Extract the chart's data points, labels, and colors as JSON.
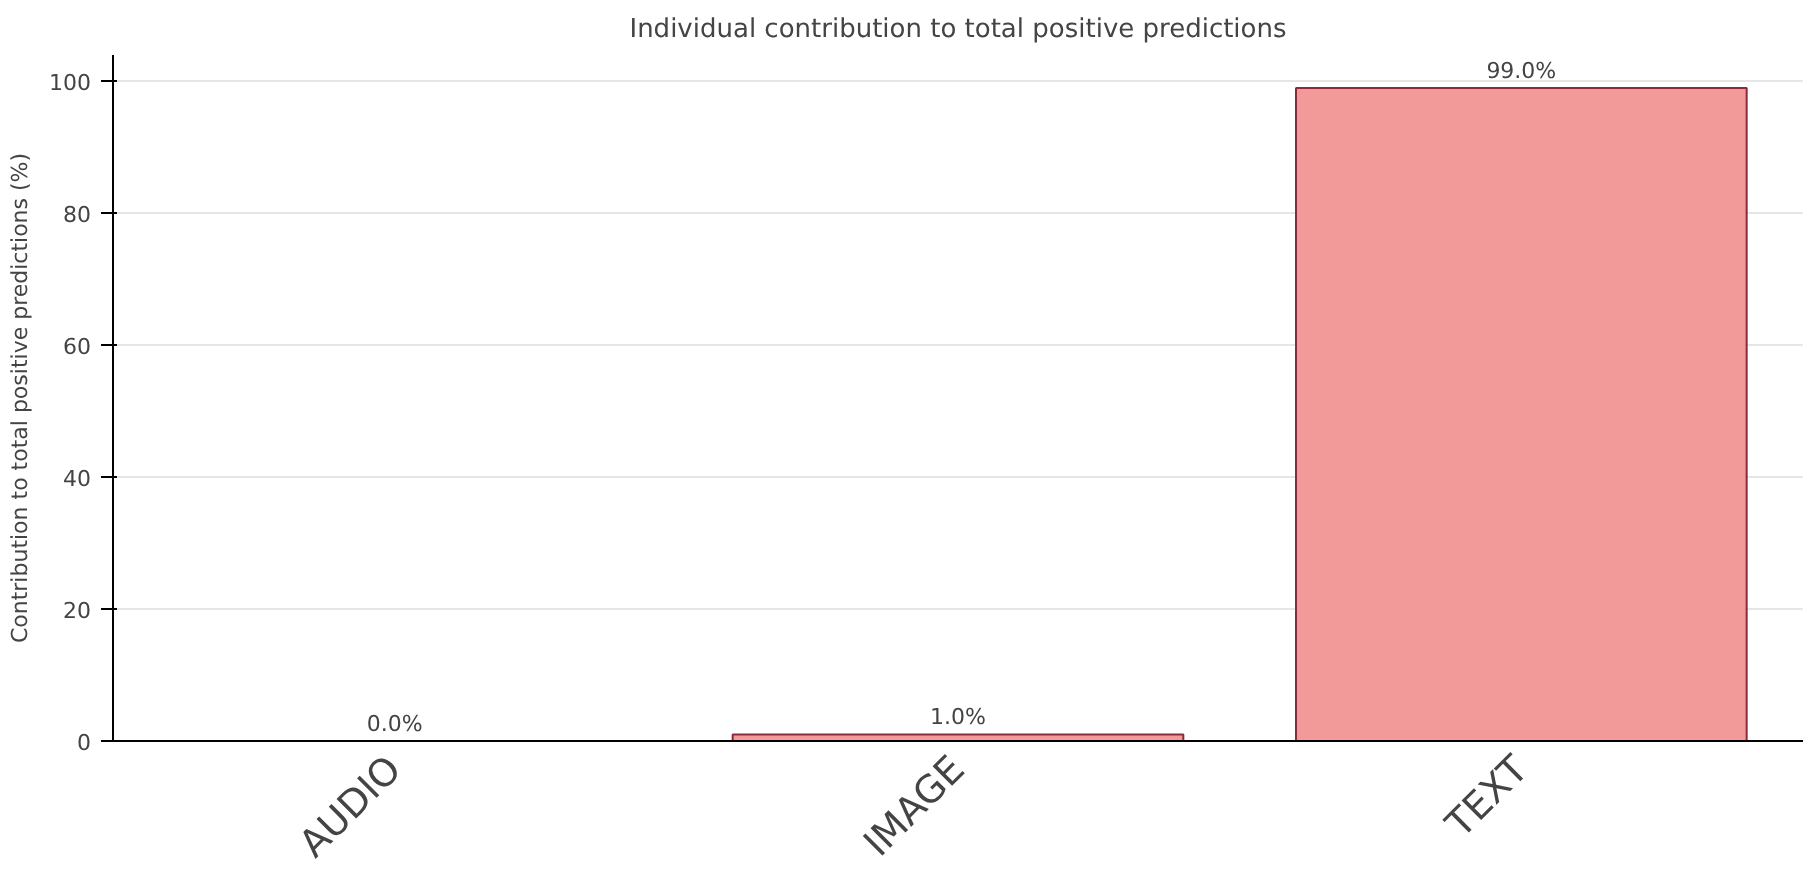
{
  "chart_data": {
    "type": "bar",
    "title": "Individual contribution to total positive predictions",
    "ylabel": "Contribution to total positive predictions (%)",
    "categories": [
      "AUDIO",
      "IMAGE",
      "TEXT"
    ],
    "values": [
      0.0,
      1.0,
      99.0
    ],
    "value_labels": [
      "0.0%",
      "1.0%",
      "99.0%"
    ],
    "color": "#f29a99",
    "ylim": [
      0,
      104
    ],
    "yticks": [
      0,
      20,
      40,
      60,
      80,
      100
    ],
    "grid": "y"
  }
}
